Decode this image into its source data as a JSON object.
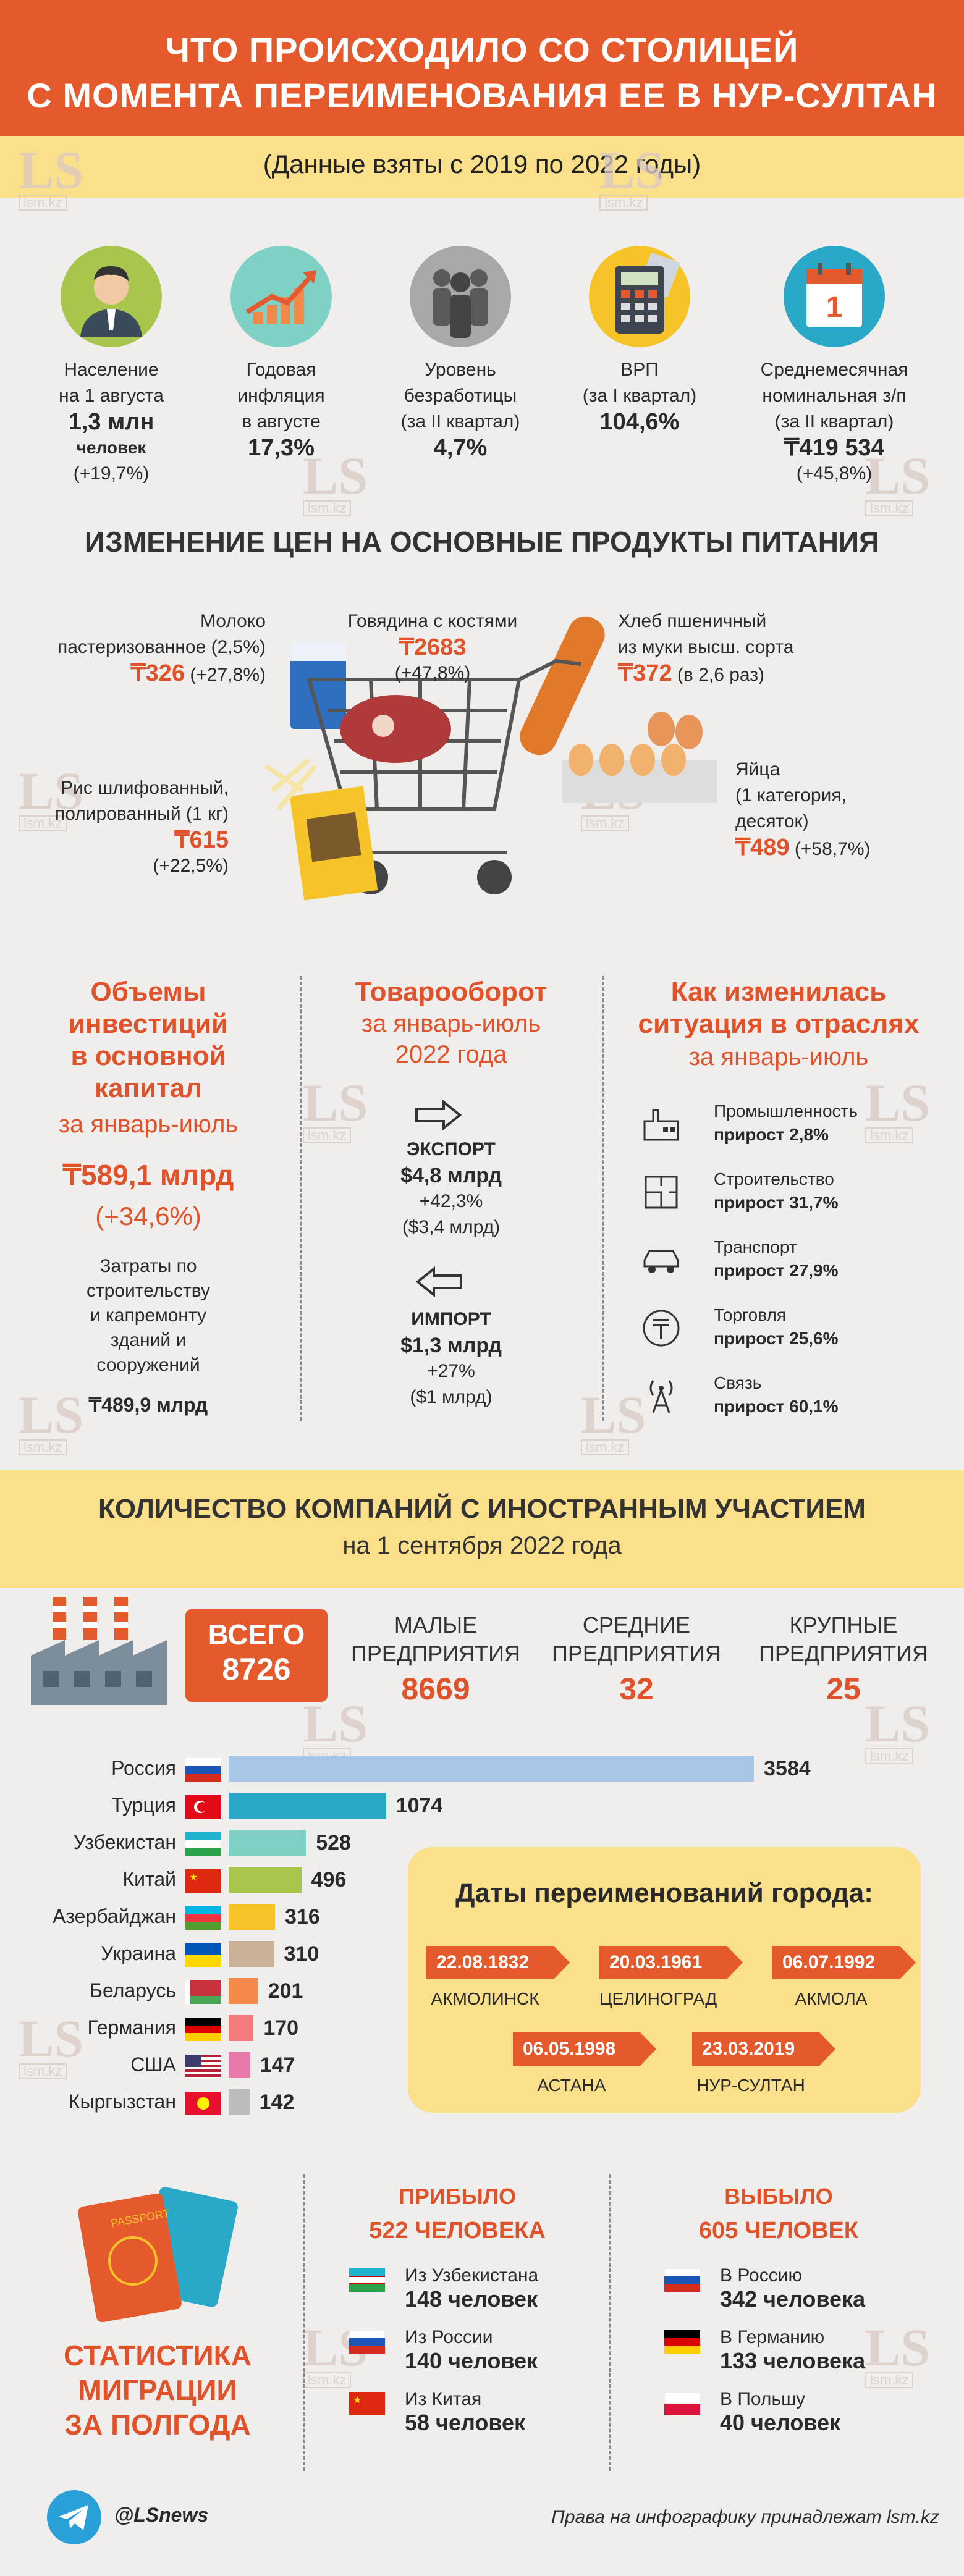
{
  "header": {
    "line1": "ЧТО ПРОИСХОДИЛО СО СТОЛИЦЕЙ",
    "line2": "С МОМЕНТА ПЕРЕИМЕНОВАНИЯ ЕЕ В НУР-СУЛТАН",
    "subtitle": "(Данные взяты с 2019 по 2022 годы)"
  },
  "watermark": {
    "logo": "LS",
    "site": "lsm.kz"
  },
  "stats": [
    {
      "label1": "Население",
      "label2": "на 1 августа",
      "label3": "",
      "value": "1,3 млн",
      "unit": "человек",
      "change": "(+19,7%)",
      "icon": "person-icon"
    },
    {
      "label1": "Годовая",
      "label2": "инфляция",
      "label3": "в августе",
      "value": "17,3%",
      "unit": "",
      "change": "",
      "icon": "growth-chart-icon"
    },
    {
      "label1": "Уровень",
      "label2": "безработицы",
      "label3": "(за II квартал)",
      "value": "4,7%",
      "unit": "",
      "change": "",
      "icon": "people-icon"
    },
    {
      "label1": "ВРП",
      "label2": "(за I квартал)",
      "label3": "",
      "value": "104,6%",
      "unit": "",
      "change": "",
      "icon": "calculator-icon"
    },
    {
      "label1": "Среднемесячная",
      "label2": "номинальная з/п",
      "label3": "(за II квартал)",
      "value": "₸419 534",
      "unit": "",
      "change": "(+45,8%)",
      "icon": "calendar-icon"
    }
  ],
  "food": {
    "title": "ИЗМЕНЕНИЕ ЦЕН НА ОСНОВНЫЕ ПРОДУКТЫ ПИТАНИЯ",
    "milk": {
      "l1": "Молоко",
      "l2": "пастеризованное (2,5%)",
      "price": "₸326",
      "change": "(+27,8%)"
    },
    "beef": {
      "l1": "Говядина с костями",
      "price": "₸2683",
      "change": "(+47,8%)"
    },
    "bread": {
      "l1": "Хлеб пшеничный",
      "l2": "из муки высш. сорта",
      "price": "₸372",
      "change": "(в 2,6 раз)"
    },
    "rice": {
      "l1": "Рис шлифованный,",
      "l2": "полированный (1 кг)",
      "price": "₸615",
      "change": "(+22,5%)"
    },
    "eggs": {
      "l1": "Яйца",
      "l2": "(1 категория,",
      "l3": "десяток)",
      "price": "₸489",
      "change": "(+58,7%)"
    }
  },
  "invest": {
    "h1": "Объемы",
    "h2": "инвестиций",
    "h3": "в основной",
    "h4": "капитал",
    "period": "за январь-июль",
    "value": "₸589,1 млрд",
    "change": "(+34,6%)",
    "c1": "Затраты по",
    "c2": "строительству",
    "c3": "и капремонту",
    "c4": "зданий и",
    "c5": "сооружений",
    "cval": "₸489,9 млрд"
  },
  "trade": {
    "h1": "Товарооборот",
    "p1": "за январь-июль",
    "p2": "2022 года",
    "export_label": "ЭКСПОРТ",
    "export_value": "$4,8 млрд",
    "export_change": "+42,3%",
    "export_prev": "($3,4 млрд)",
    "import_label": "ИМПОРТ",
    "import_value": "$1,3 млрд",
    "import_change": "+27%",
    "import_prev": "($1 млрд)"
  },
  "sectors": {
    "h1": "Как изменилась",
    "h2": "ситуация в отраслях",
    "period": "за январь-июль",
    "items": [
      {
        "name": "Промышленность",
        "growth": "прирост 2,8%",
        "icon": "factory-icon"
      },
      {
        "name": "Строительство",
        "growth": "прирост 31,7%",
        "icon": "blueprint-icon"
      },
      {
        "name": "Транспорт",
        "growth": "прирост 27,9%",
        "icon": "car-icon"
      },
      {
        "name": "Торговля",
        "growth": "прирост 25,6%",
        "icon": "tenge-icon"
      },
      {
        "name": "Связь",
        "growth": "прирост 60,1%",
        "icon": "antenna-icon"
      }
    ]
  },
  "companies": {
    "title": "КОЛИЧЕСТВО КОМПАНИЙ С ИНОСТРАННЫМ УЧАСТИЕМ",
    "date": "на 1 сентября 2022 года",
    "total_label": "ВСЕГО",
    "total": "8726",
    "small_l1": "МАЛЫЕ",
    "small_l2": "ПРЕДПРИЯТИЯ",
    "small": "8669",
    "mid_l1": "СРЕДНИЕ",
    "mid_l2": "ПРЕДПРИЯТИЯ",
    "mid": "32",
    "large_l1": "КРУПНЫЕ",
    "large_l2": "ПРЕДПРИЯТИЯ",
    "large": "25"
  },
  "chart_data": {
    "type": "bar",
    "orientation": "horizontal",
    "categories": [
      "Россия",
      "Турция",
      "Узбекистан",
      "Китай",
      "Азербайджан",
      "Украина",
      "Беларусь",
      "Германия",
      "США",
      "Кыргызстан"
    ],
    "values": [
      3584,
      1074,
      528,
      496,
      316,
      310,
      201,
      170,
      147,
      142
    ],
    "colors": [
      "#a8c6e6",
      "#2aa8c8",
      "#7ed1c4",
      "#a9c64c",
      "#f6c428",
      "#c9b298",
      "#f38a4a",
      "#f47b7b",
      "#e878a8",
      "#bcbcbc"
    ]
  },
  "renames": {
    "title": "Даты переименований города:",
    "items": [
      {
        "date": "22.08.1832",
        "name": "АКМОЛИНСК"
      },
      {
        "date": "20.03.1961",
        "name": "ЦЕЛИНОГРАД"
      },
      {
        "date": "06.07.1992",
        "name": "АКМОЛА"
      },
      {
        "date": "06.05.1998",
        "name": "АСТАНА"
      },
      {
        "date": "23.03.2019",
        "name": "НУР-СУЛТАН"
      }
    ]
  },
  "migration": {
    "t1": "СТАТИСТИКА",
    "t2": "МИГРАЦИИ",
    "t3": "ЗА ПОЛГОДА",
    "arrived_label": "ПРИБЫЛО",
    "arrived": "522 ЧЕЛОВЕКА",
    "left_label": "ВЫБЫЛО",
    "left": "605 ЧЕЛОВЕК",
    "passport_label": "PASSPORT",
    "arrived_items": [
      {
        "from": "Из Узбекистана",
        "count": "148 человек"
      },
      {
        "from": "Из России",
        "count": "140 человек"
      },
      {
        "from": "Из Китая",
        "count": "58 человек"
      }
    ],
    "left_items": [
      {
        "to": "В Россию",
        "count": "342 человека"
      },
      {
        "to": "В Германию",
        "count": "133 человека"
      },
      {
        "to": "В Польшу",
        "count": "40 человек"
      }
    ]
  },
  "footer": {
    "handle": "@LSnews",
    "rights": "Права на инфографику принадлежат lsm.kz"
  }
}
